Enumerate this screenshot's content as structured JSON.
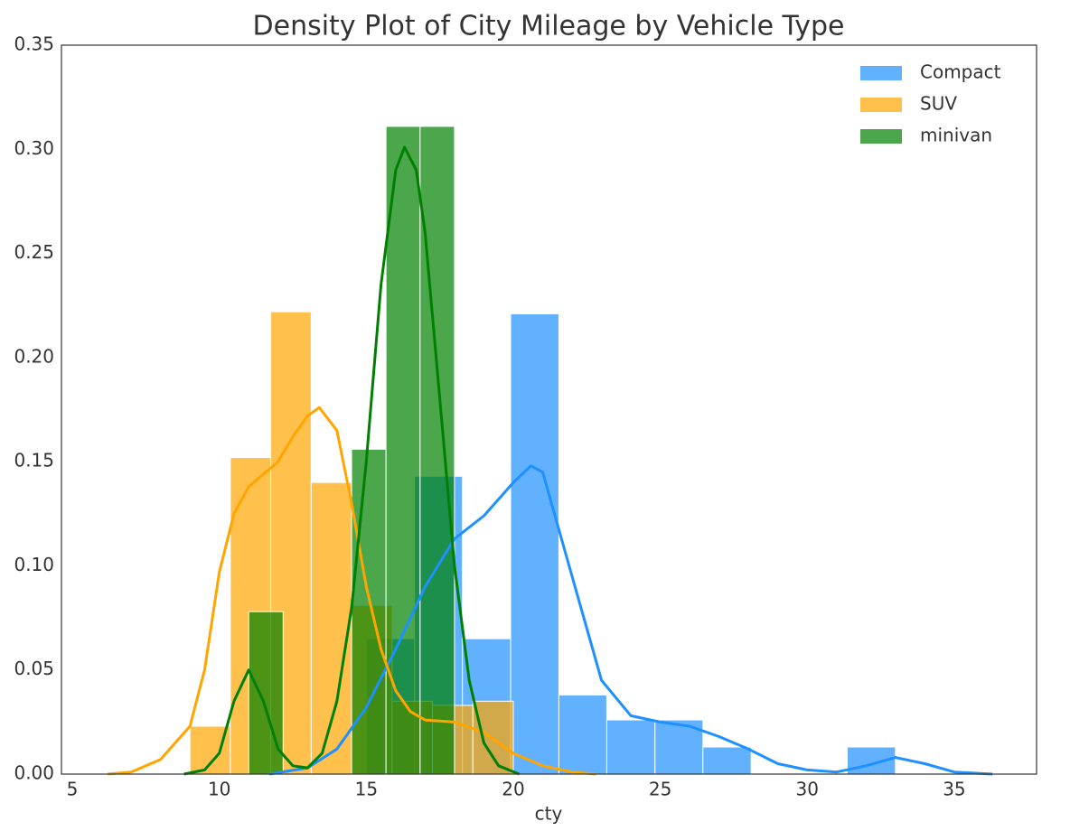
{
  "chart_data": {
    "type": "histogram",
    "title": "Density Plot of City Mileage by Vehicle Type",
    "xlabel": "cty",
    "xlim": [
      4.63,
      37.8
    ],
    "ylim": [
      0,
      0.35
    ],
    "xticks": [
      5,
      10,
      15,
      20,
      25,
      30,
      35
    ],
    "yticks": [
      {
        "value": 0,
        "label": "0.00"
      },
      {
        "value": 0.05,
        "label": "0.05"
      },
      {
        "value": 0.1,
        "label": "0.10"
      },
      {
        "value": 0.15,
        "label": "0.15"
      },
      {
        "value": 0.2,
        "label": "0.20"
      },
      {
        "value": 0.25,
        "label": "0.25"
      },
      {
        "value": 0.3,
        "label": "0.30"
      },
      {
        "value": 0.35,
        "label": "0.35"
      }
    ],
    "grid": false,
    "legend": "upper right",
    "series": [
      {
        "name": "Compact",
        "color": "#1e90ff",
        "bins": [
          15,
          16.64,
          18.27,
          19.91,
          21.55,
          23.18,
          24.82,
          26.45,
          28.09,
          29.73,
          31.36,
          33
        ],
        "values": [
          0.065,
          0.143,
          0.065,
          0.221,
          0.038,
          0.026,
          0.026,
          0.013,
          0,
          0,
          0.013
        ],
        "kde_x": [
          11.7,
          13,
          14,
          15,
          16,
          17,
          18,
          19,
          20,
          20.6,
          21,
          22,
          23,
          24,
          25,
          26,
          27,
          28,
          29,
          30,
          31,
          32,
          33,
          34,
          35,
          36.3
        ],
        "kde_y": [
          0,
          0.003,
          0.012,
          0.032,
          0.06,
          0.09,
          0.113,
          0.124,
          0.14,
          0.148,
          0.145,
          0.095,
          0.045,
          0.028,
          0.025,
          0.023,
          0.018,
          0.012,
          0.005,
          0.002,
          0.001,
          0.004,
          0.008,
          0.005,
          0.001,
          0
        ]
      },
      {
        "name": "SUV",
        "color": "#ffa500",
        "bins": [
          9,
          10.375,
          11.75,
          13.125,
          14.5,
          15.875,
          17.25,
          18.625,
          20
        ],
        "values": [
          0.023,
          0.152,
          0.222,
          0.14,
          0.081,
          0.035,
          0.033,
          0.035
        ],
        "kde_x": [
          6.2,
          7,
          8,
          9,
          9.5,
          10,
          10.5,
          11,
          12,
          12.5,
          13,
          13.4,
          14,
          14.5,
          15,
          15.5,
          16,
          16.5,
          17,
          18,
          19,
          20,
          21,
          22,
          22.8
        ],
        "kde_y": [
          0,
          0.001,
          0.007,
          0.023,
          0.05,
          0.097,
          0.125,
          0.138,
          0.15,
          0.162,
          0.172,
          0.176,
          0.165,
          0.13,
          0.09,
          0.06,
          0.04,
          0.03,
          0.026,
          0.025,
          0.02,
          0.01,
          0.004,
          0.001,
          0
        ]
      },
      {
        "name": "minivan",
        "color": "#008000",
        "bins": [
          11,
          12.17,
          13.33,
          14.5,
          15.67,
          16.83,
          18
        ],
        "values": [
          0.078,
          0,
          0,
          0.156,
          0.311,
          0.311
        ],
        "kde_x": [
          8.8,
          9.5,
          10,
          10.5,
          11,
          11.5,
          12,
          12.5,
          13,
          13.5,
          14,
          14.5,
          15,
          15.5,
          16,
          16.3,
          16.7,
          17,
          17.5,
          18,
          18.5,
          19,
          19.5,
          20.2
        ],
        "kde_y": [
          0,
          0.002,
          0.01,
          0.035,
          0.05,
          0.035,
          0.012,
          0.004,
          0.003,
          0.01,
          0.035,
          0.08,
          0.15,
          0.235,
          0.29,
          0.301,
          0.29,
          0.26,
          0.18,
          0.1,
          0.045,
          0.015,
          0.004,
          0
        ]
      }
    ]
  }
}
